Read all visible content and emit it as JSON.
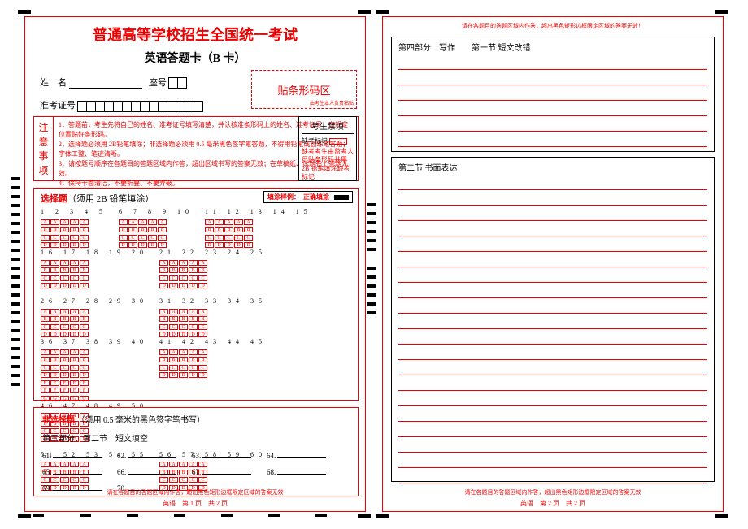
{
  "title_main": "普通高等学校招生全国统一考试",
  "title_sub": "英语答题卡（B 卡）",
  "label_name": "姓　名",
  "label_seat": "座号",
  "label_admission": "准考证号",
  "barcode_label": "贴条形码区",
  "barcode_tiny": "由考生本人负责粘贴",
  "notice_side": [
    "注",
    "意",
    "事",
    "项"
  ],
  "notice_lines": [
    "1．答题前，考生先将自己的姓名、准考证号填写清楚，并认核准条形码上的姓名、准考证号，在规定位置贴好条形码。",
    "2．选择题必须用 2B铅笔填涂；非选择题必须用 0.5 毫米黑色签字笔答题，不得用铅笔或圆珠笔答题；字体工整、笔迹清晰。",
    "3．请按题号顺序在各题目的答题区域内作答，超出区域书写的答案无效；在草稿纸、试题卷上答题无效。",
    "4．保持卡面清洁，不要折叠、不要弄破。"
  ],
  "examfill_head": "考生禁填",
  "examfill_label": "缺考标记",
  "examfill_note": "缺考考生由监考人员贴条形码并用 2B 铅笔填涂缺考标记",
  "mc_title": "选择题",
  "mc_note": "（须用 2B 铅笔填涂）",
  "fill_ex_label": "填涂样例：",
  "fill_ex_corr": "正确填涂",
  "options_abcd": [
    "A",
    "B",
    "C",
    "D"
  ],
  "options_efg": [
    "E",
    "F",
    "G"
  ],
  "groups": [
    {
      "start": 1,
      "rows": 4,
      "cols": 5,
      "opts": "abcd"
    },
    {
      "start": 6,
      "rows": 4,
      "cols": 5,
      "opts": "abcd"
    },
    {
      "start": 11,
      "rows": 4,
      "cols": 5,
      "opts": "abcd"
    },
    {
      "start": 16,
      "rows": 4,
      "cols": 5,
      "opts": "abcd"
    },
    {
      "start": 21,
      "rows": 4,
      "cols": 5,
      "opts": "abcd"
    }
  ],
  "groups2": [
    {
      "start": 26,
      "rows": 4,
      "cols": 5,
      "opts": "abcd"
    },
    {
      "start": 31,
      "rows": 4,
      "cols": 5,
      "opts": "abcd"
    },
    {
      "start": 36,
      "rows": 7,
      "cols": 5,
      "opts": "abcdefg"
    },
    {
      "start": 41,
      "rows": 4,
      "cols": 5,
      "opts": "abcd"
    },
    {
      "start": 46,
      "rows": 4,
      "cols": 5,
      "opts": "abcd"
    }
  ],
  "groups3": [
    {
      "start": 51,
      "rows": 4,
      "cols": 5,
      "opts": "abcd"
    },
    {
      "start": 56,
      "rows": 4,
      "cols": 5,
      "opts": "abcd"
    }
  ],
  "nonmc_title": "非选择题",
  "nonmc_note": "（须用 0.5 毫米的黑色签字笔书写）",
  "nonmc_sect": "第三部分、第二节　短文填空",
  "blanks": [
    "61.",
    "62.",
    "63.",
    "64.",
    "65.",
    "66.",
    "67.",
    "68.",
    "69.",
    "70."
  ],
  "page1_footnote": "请在各题目的答题区域内作答，超出黑色矩形边框限定区域的答案无效",
  "page1_num": "英语　第 1 页　共 2 页",
  "page2_warn": "请在各题目的答题区域内作答，超出黑色矩形边框限定区域的答案无效！",
  "page2_sect1": "第四部分　写作　　第一节  短文改错",
  "page2_sect2": "第二节  书面表达",
  "page2_footnote": "请在各题目的答题区域内作答，超出黑色矩形边框限定区域的答案无效",
  "page2_num": "英语　第 2 页　共 2 页",
  "colors": {
    "red": "#e00000"
  }
}
